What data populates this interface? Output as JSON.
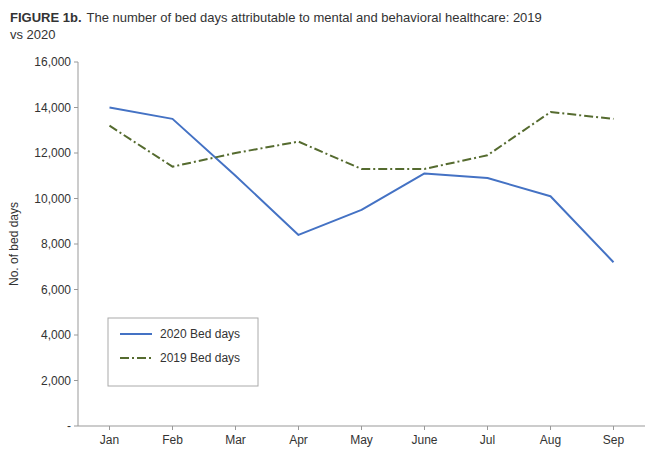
{
  "chart_data": {
    "type": "line",
    "title": "FIGURE 1b.",
    "subtitle": "The number of bed days attributable to mental and behavioral healthcare: 2019\nvs 2020",
    "categories": [
      "Jan",
      "Feb",
      "Mar",
      "Apr",
      "May",
      "June",
      "Jul",
      "Aug",
      "Sep"
    ],
    "series": [
      {
        "name": "2020 Bed days",
        "color": "#4472C4",
        "line_style": "solid",
        "values": [
          14000,
          13500,
          11000,
          8400,
          9500,
          11100,
          10900,
          10100,
          7200
        ]
      },
      {
        "name": "2019 Bed days",
        "color": "#556B2F",
        "line_style": "dashdot",
        "values": [
          13200,
          11400,
          12000,
          12500,
          11300,
          11300,
          11900,
          13800,
          13500
        ]
      }
    ],
    "y_label": "No. of bed days",
    "ylim": [
      0,
      16000
    ],
    "yticks": [
      {
        "value": 0,
        "label": "-"
      },
      {
        "value": 2000,
        "label": "2,000"
      },
      {
        "value": 4000,
        "label": "4,000"
      },
      {
        "value": 6000,
        "label": "6,000"
      },
      {
        "value": 8000,
        "label": "8,000"
      },
      {
        "value": 10000,
        "label": "10,000"
      },
      {
        "value": 12000,
        "label": "12,000"
      },
      {
        "value": 14000,
        "label": "14,000"
      },
      {
        "value": 16000,
        "label": "16,000"
      }
    ],
    "grid": false,
    "legend": "lower left"
  }
}
